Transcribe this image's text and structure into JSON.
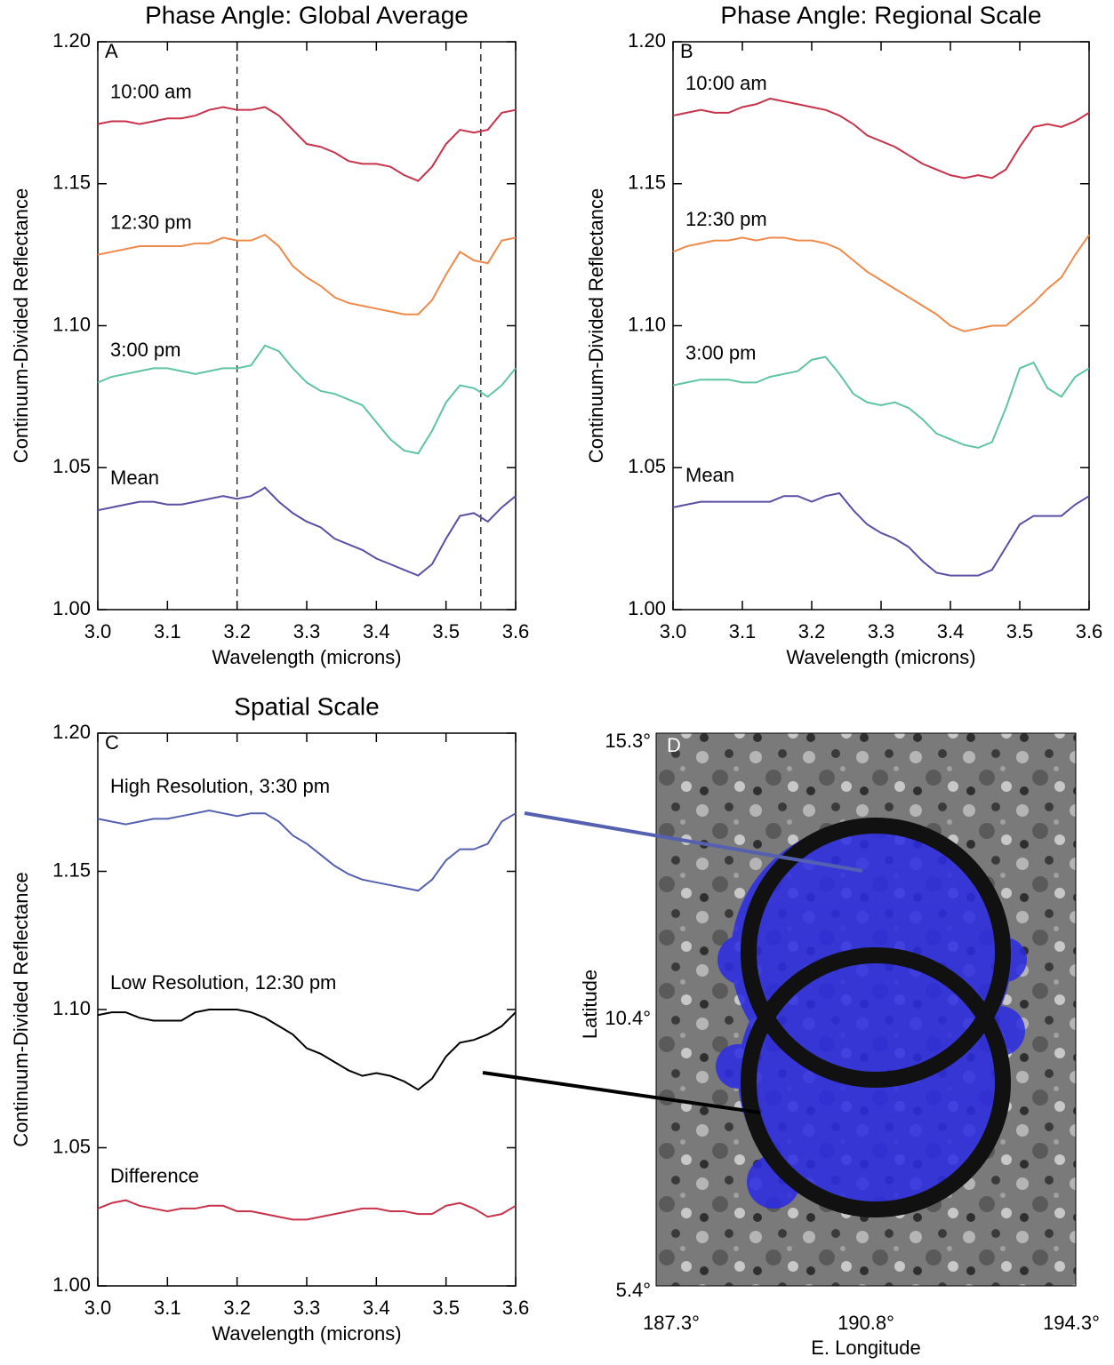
{
  "chart_data": [
    {
      "type": "line",
      "title": "Phase Angle: Global Average",
      "panel": "A",
      "xlabel": "Wavelength (microns)",
      "ylabel": "Continuum-Divided Reflectance",
      "xlim": [
        3.0,
        3.6
      ],
      "ylim": [
        1.0,
        1.2
      ],
      "xticks": [
        {
          "value": 3.0,
          "label": "3.0"
        },
        3.1,
        3.2,
        3.3,
        3.4,
        3.5,
        3.6
      ],
      "yticks": [
        {
          "value": 1.0,
          "label": "1.00"
        },
        1.05,
        {
          "value": 1.1,
          "label": "1.10"
        },
        1.15,
        {
          "value": 1.2,
          "label": "1.20"
        }
      ],
      "vlines": [
        3.2,
        3.55
      ],
      "x": [
        3.0,
        3.02,
        3.04,
        3.06,
        3.08,
        3.1,
        3.12,
        3.14,
        3.16,
        3.18,
        3.2,
        3.22,
        3.24,
        3.26,
        3.28,
        3.3,
        3.32,
        3.34,
        3.36,
        3.38,
        3.4,
        3.42,
        3.44,
        3.46,
        3.48,
        3.5,
        3.52,
        3.54,
        3.56,
        3.58,
        3.6
      ],
      "series": [
        {
          "name": "10:00 am",
          "color": "#c8324a",
          "values": [
            1.171,
            1.172,
            1.172,
            1.171,
            1.172,
            1.173,
            1.173,
            1.174,
            1.176,
            1.177,
            1.176,
            1.176,
            1.177,
            1.174,
            1.169,
            1.164,
            1.163,
            1.161,
            1.158,
            1.157,
            1.157,
            1.156,
            1.153,
            1.151,
            1.156,
            1.164,
            1.169,
            1.168,
            1.169,
            1.175,
            1.176
          ]
        },
        {
          "name": "12:30 pm",
          "color": "#f08a4b",
          "values": [
            1.125,
            1.126,
            1.127,
            1.128,
            1.128,
            1.128,
            1.128,
            1.129,
            1.129,
            1.131,
            1.13,
            1.13,
            1.132,
            1.128,
            1.121,
            1.117,
            1.114,
            1.11,
            1.108,
            1.107,
            1.106,
            1.105,
            1.104,
            1.104,
            1.109,
            1.118,
            1.126,
            1.123,
            1.122,
            1.13,
            1.131
          ]
        },
        {
          "name": "3:00 pm",
          "color": "#5fc4a0",
          "values": [
            1.08,
            1.082,
            1.083,
            1.084,
            1.085,
            1.085,
            1.084,
            1.083,
            1.084,
            1.085,
            1.085,
            1.086,
            1.093,
            1.091,
            1.085,
            1.08,
            1.077,
            1.076,
            1.074,
            1.072,
            1.066,
            1.06,
            1.056,
            1.055,
            1.063,
            1.073,
            1.079,
            1.078,
            1.075,
            1.079,
            1.085
          ]
        },
        {
          "name": "Mean",
          "color": "#5a4fa4",
          "values": [
            1.035,
            1.036,
            1.037,
            1.038,
            1.038,
            1.037,
            1.037,
            1.038,
            1.039,
            1.04,
            1.039,
            1.04,
            1.043,
            1.038,
            1.034,
            1.031,
            1.029,
            1.025,
            1.023,
            1.021,
            1.018,
            1.016,
            1.014,
            1.012,
            1.016,
            1.025,
            1.033,
            1.034,
            1.031,
            1.036,
            1.04
          ]
        }
      ]
    },
    {
      "type": "line",
      "title": "Phase Angle: Regional Scale",
      "panel": "B",
      "xlabel": "Wavelength (microns)",
      "ylabel": "Continuum-Divided Reflectance",
      "xlim": [
        3.0,
        3.6
      ],
      "ylim": [
        1.0,
        1.2
      ],
      "xticks": [
        {
          "value": 3.0,
          "label": "3.0"
        },
        3.1,
        3.2,
        3.3,
        3.4,
        3.5,
        3.6
      ],
      "yticks": [
        {
          "value": 1.0,
          "label": "1.00"
        },
        1.05,
        {
          "value": 1.1,
          "label": "1.10"
        },
        1.15,
        {
          "value": 1.2,
          "label": "1.20"
        }
      ],
      "x": [
        3.0,
        3.02,
        3.04,
        3.06,
        3.08,
        3.1,
        3.12,
        3.14,
        3.16,
        3.18,
        3.2,
        3.22,
        3.24,
        3.26,
        3.28,
        3.3,
        3.32,
        3.34,
        3.36,
        3.38,
        3.4,
        3.42,
        3.44,
        3.46,
        3.48,
        3.5,
        3.52,
        3.54,
        3.56,
        3.58,
        3.6
      ],
      "series": [
        {
          "name": "10:00 am",
          "color": "#c8324a",
          "values": [
            1.174,
            1.175,
            1.176,
            1.175,
            1.175,
            1.177,
            1.178,
            1.18,
            1.179,
            1.178,
            1.177,
            1.176,
            1.174,
            1.171,
            1.167,
            1.165,
            1.163,
            1.16,
            1.157,
            1.155,
            1.153,
            1.152,
            1.153,
            1.152,
            1.155,
            1.163,
            1.17,
            1.171,
            1.17,
            1.172,
            1.175
          ]
        },
        {
          "name": "12:30 pm",
          "color": "#f08a4b",
          "values": [
            1.126,
            1.128,
            1.129,
            1.13,
            1.13,
            1.131,
            1.13,
            1.131,
            1.131,
            1.13,
            1.13,
            1.129,
            1.127,
            1.123,
            1.119,
            1.116,
            1.113,
            1.11,
            1.107,
            1.104,
            1.1,
            1.098,
            1.099,
            1.1,
            1.1,
            1.104,
            1.108,
            1.113,
            1.117,
            1.125,
            1.132
          ]
        },
        {
          "name": "3:00 pm",
          "color": "#5fc4a0",
          "values": [
            1.079,
            1.08,
            1.081,
            1.081,
            1.081,
            1.08,
            1.08,
            1.082,
            1.083,
            1.084,
            1.088,
            1.089,
            1.083,
            1.076,
            1.073,
            1.072,
            1.073,
            1.071,
            1.067,
            1.062,
            1.06,
            1.058,
            1.057,
            1.059,
            1.071,
            1.085,
            1.087,
            1.078,
            1.075,
            1.082,
            1.085
          ]
        },
        {
          "name": "Mean",
          "color": "#5a4fa4",
          "values": [
            1.036,
            1.037,
            1.038,
            1.038,
            1.038,
            1.038,
            1.038,
            1.038,
            1.04,
            1.04,
            1.038,
            1.04,
            1.041,
            1.035,
            1.03,
            1.027,
            1.025,
            1.022,
            1.017,
            1.013,
            1.012,
            1.012,
            1.012,
            1.014,
            1.022,
            1.03,
            1.033,
            1.033,
            1.033,
            1.037,
            1.04
          ]
        }
      ]
    },
    {
      "type": "line",
      "title": "Spatial Scale",
      "panel": "C",
      "xlabel": "Wavelength (microns)",
      "ylabel": "Continuum-Divided Reflectance",
      "xlim": [
        3.0,
        3.6
      ],
      "ylim": [
        1.0,
        1.2
      ],
      "xticks": [
        {
          "value": 3.0,
          "label": "3.0"
        },
        3.1,
        3.2,
        3.3,
        3.4,
        3.5,
        3.6
      ],
      "yticks": [
        {
          "value": 1.0,
          "label": "1.00"
        },
        1.05,
        {
          "value": 1.1,
          "label": "1.10"
        },
        1.15,
        {
          "value": 1.2,
          "label": "1.20"
        }
      ],
      "x": [
        3.0,
        3.02,
        3.04,
        3.06,
        3.08,
        3.1,
        3.12,
        3.14,
        3.16,
        3.18,
        3.2,
        3.22,
        3.24,
        3.26,
        3.28,
        3.3,
        3.32,
        3.34,
        3.36,
        3.38,
        3.4,
        3.42,
        3.44,
        3.46,
        3.48,
        3.5,
        3.52,
        3.54,
        3.56,
        3.58,
        3.6
      ],
      "series": [
        {
          "name": "High Resolution, 3:30 pm",
          "color": "#5561b0",
          "values": [
            1.169,
            1.168,
            1.167,
            1.168,
            1.169,
            1.169,
            1.17,
            1.171,
            1.172,
            1.171,
            1.17,
            1.171,
            1.171,
            1.168,
            1.163,
            1.16,
            1.156,
            1.152,
            1.149,
            1.147,
            1.146,
            1.145,
            1.144,
            1.143,
            1.147,
            1.154,
            1.158,
            1.158,
            1.16,
            1.168,
            1.171
          ]
        },
        {
          "name": "Low Resolution, 12:30 pm",
          "color": "#000000",
          "values": [
            1.098,
            1.099,
            1.099,
            1.097,
            1.096,
            1.096,
            1.096,
            1.099,
            1.1,
            1.1,
            1.1,
            1.099,
            1.097,
            1.094,
            1.091,
            1.086,
            1.084,
            1.081,
            1.078,
            1.076,
            1.077,
            1.076,
            1.074,
            1.071,
            1.075,
            1.083,
            1.088,
            1.089,
            1.091,
            1.094,
            1.099
          ]
        },
        {
          "name": "Difference",
          "color": "#c8324a",
          "values": [
            1.028,
            1.03,
            1.031,
            1.029,
            1.028,
            1.027,
            1.028,
            1.028,
            1.029,
            1.029,
            1.027,
            1.027,
            1.026,
            1.025,
            1.024,
            1.024,
            1.025,
            1.026,
            1.027,
            1.028,
            1.028,
            1.027,
            1.027,
            1.026,
            1.026,
            1.029,
            1.03,
            1.028,
            1.025,
            1.026,
            1.029
          ]
        }
      ]
    }
  ],
  "map_panel": {
    "panel": "D",
    "xlabel": "E. Longitude",
    "ylabel": "Latitude",
    "lat_labels": [
      "15.3°",
      "10.4°",
      "5.4°"
    ],
    "lon_labels": [
      "187.3°",
      "190.8°",
      "194.3°"
    ]
  }
}
